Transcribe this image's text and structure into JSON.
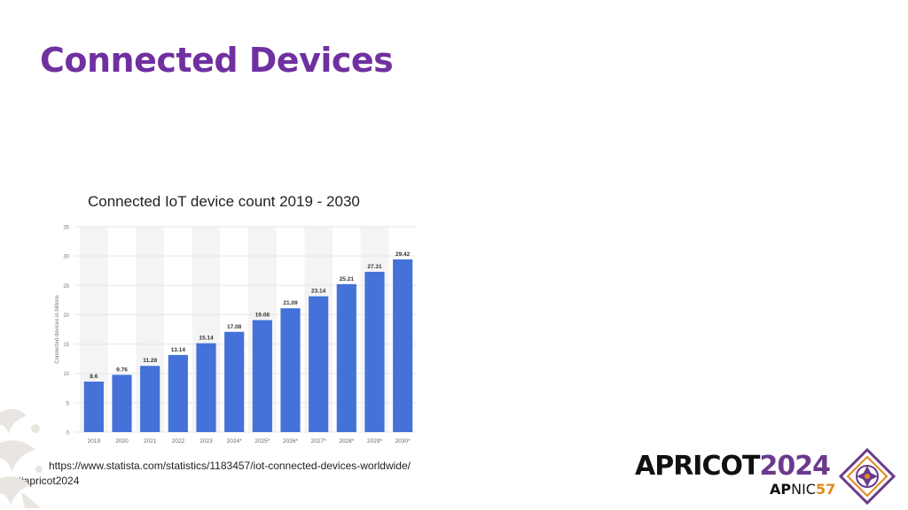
{
  "slide": {
    "title": "Connected Devices",
    "chart_caption": "Connected IoT device count 2019 - 2030",
    "source": "https://www.statista.com/statistics/1183457/iot-connected-devices-worldwide/",
    "hashtag": "#apricot2024"
  },
  "branding": {
    "event_word": "APRICOT",
    "event_year": "2024",
    "org_prefix": "AP",
    "org_suffix": "NIC",
    "org_number": "57",
    "colors": {
      "purple": "#6a3a8c",
      "orange": "#e08a1a",
      "dark": "#111111"
    }
  },
  "colors": {
    "title": "#7030a0",
    "bar": "#4472d8",
    "grid": "#e6e6e6",
    "band": "#f4f4f4"
  },
  "chart_data": {
    "type": "bar",
    "ylabel": "Connected devices in billions",
    "ylim": [
      0,
      35
    ],
    "yticks": [
      0,
      5,
      10,
      15,
      20,
      25,
      30,
      35
    ],
    "grid": true,
    "categories": [
      "2019",
      "2020",
      "2021",
      "2022",
      "2023",
      "2024*",
      "2025*",
      "2026*",
      "2027*",
      "2028*",
      "2029*",
      "2030*"
    ],
    "values": [
      8.6,
      9.76,
      11.28,
      13.14,
      15.14,
      17.08,
      19.08,
      21.09,
      23.14,
      25.21,
      27.31,
      29.42
    ],
    "value_labels": [
      "8.6",
      "9.76",
      "11.28",
      "13.14",
      "15.14",
      "17.08",
      "19.08",
      "21.09",
      "23.14",
      "25.21",
      "27.31",
      "29.42"
    ]
  }
}
